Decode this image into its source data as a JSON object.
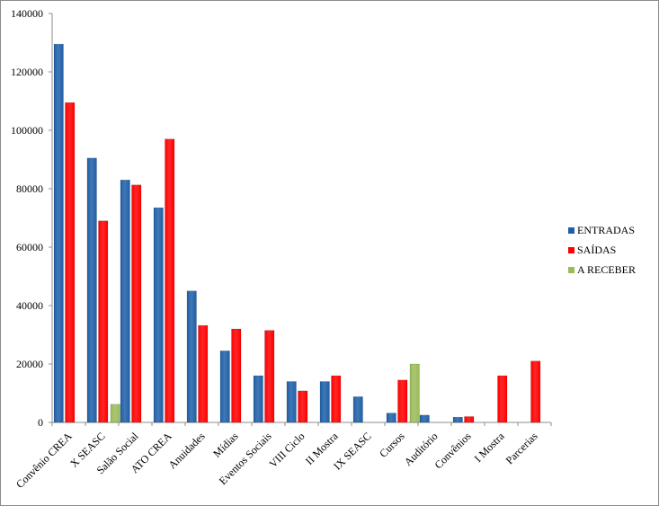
{
  "chart_data": {
    "type": "bar",
    "categories": [
      "Convênio CREA",
      "X SEASC",
      "Salão Social",
      "ATO CREA",
      "Anuidades",
      "Mídias",
      "Eventos Sociais",
      "VIII Ciclo",
      "II Mostra",
      "IX SEASC",
      "Cursos",
      "Auditório",
      "Convênios",
      "I Mostra",
      "Parcerias"
    ],
    "series": [
      {
        "name": "ENTRADAS",
        "color": "#1f5fa8",
        "values": [
          129500,
          90500,
          83000,
          73500,
          45000,
          24500,
          16000,
          14000,
          14000,
          8800,
          3200,
          2500,
          1800,
          0,
          0
        ]
      },
      {
        "name": "SAÍDAS",
        "color": "#ff0000",
        "values": [
          109500,
          69000,
          81300,
          97000,
          33200,
          32000,
          31500,
          10800,
          16000,
          0,
          14500,
          0,
          2000,
          16000,
          21000
        ]
      },
      {
        "name": "A RECEBER",
        "color": "#9bbb59",
        "values": [
          0,
          6200,
          0,
          0,
          0,
          0,
          0,
          0,
          0,
          0,
          20000,
          0,
          0,
          0,
          0
        ]
      }
    ],
    "yticks": [
      "0",
      "20000",
      "40000",
      "60000",
      "80000",
      "100000",
      "120000",
      "140000"
    ],
    "ylim": [
      0,
      140000
    ],
    "grid": false,
    "legend": "right"
  }
}
